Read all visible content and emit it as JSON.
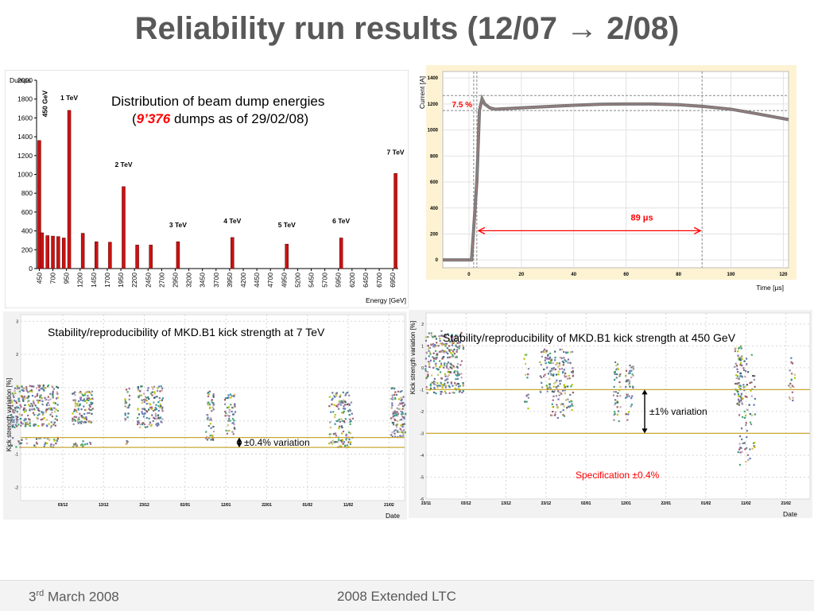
{
  "slide": {
    "title": "Reliability run results (12/07 → 2/08)",
    "footer_date_day": "3",
    "footer_date_suffix": "rd",
    "footer_date_rest": " March 2008",
    "footer_event": "2008 Extended LTC"
  },
  "colors": {
    "bar": "#cc1111",
    "accent_red": "#ff0000",
    "ref_line": "#c8a832",
    "scope_bg": "#fdf3d3",
    "trace": "#777777"
  },
  "chart_data": [
    {
      "id": "dump-histogram",
      "type": "bar",
      "title": "Distribution of beam dump energies",
      "subtitle_prefix": "(",
      "subtitle_count": "9’376",
      "subtitle_suffix": " dumps as of 29/02/08)",
      "xlabel": "Energy [GeV]",
      "ylabel": "Dumps",
      "ylim": [
        0,
        2000
      ],
      "yticks": [
        0,
        200,
        400,
        600,
        800,
        1000,
        1200,
        1400,
        1600,
        1800,
        2000
      ],
      "categories": [
        "450",
        "700",
        "950",
        "1200",
        "1450",
        "1700",
        "1950",
        "2200",
        "2450",
        "2700",
        "2950",
        "3200",
        "3450",
        "3700",
        "3950",
        "4200",
        "4450",
        "4700",
        "4950",
        "5200",
        "5450",
        "5700",
        "5950",
        "6200",
        "6450",
        "6700",
        "6950"
      ],
      "bars": [
        {
          "x": 450,
          "value": 1360
        },
        {
          "x": 500,
          "value": 380
        },
        {
          "x": 600,
          "value": 350
        },
        {
          "x": 700,
          "value": 345
        },
        {
          "x": 800,
          "value": 340
        },
        {
          "x": 900,
          "value": 325
        },
        {
          "x": 1000,
          "value": 1680
        },
        {
          "x": 1250,
          "value": 375
        },
        {
          "x": 1500,
          "value": 285
        },
        {
          "x": 1750,
          "value": 280
        },
        {
          "x": 2000,
          "value": 870
        },
        {
          "x": 2250,
          "value": 250
        },
        {
          "x": 2500,
          "value": 250
        },
        {
          "x": 3000,
          "value": 285
        },
        {
          "x": 4000,
          "value": 330
        },
        {
          "x": 5000,
          "value": 260
        },
        {
          "x": 6000,
          "value": 325
        },
        {
          "x": 7000,
          "value": 1010
        }
      ],
      "annotations": [
        {
          "text": "450 GeV",
          "x": 450,
          "y": 1750,
          "rotated": true
        },
        {
          "text": "1 TeV",
          "x": 1000,
          "y": 1790
        },
        {
          "text": "2 TeV",
          "x": 2000,
          "y": 1080
        },
        {
          "text": "3 TeV",
          "x": 3000,
          "y": 440
        },
        {
          "text": "4 TeV",
          "x": 4000,
          "y": 480
        },
        {
          "text": "5 TeV",
          "x": 5000,
          "y": 440
        },
        {
          "text": "6 TeV",
          "x": 6000,
          "y": 480
        },
        {
          "text": "7 TeV",
          "x": 7000,
          "y": 1210
        }
      ]
    },
    {
      "id": "kick-current-trace",
      "type": "line",
      "xlabel": "Time [μs]",
      "ylabel": "Current [A]",
      "xlim": [
        -10,
        122
      ],
      "ylim": [
        -60,
        1450
      ],
      "xticks": [
        0,
        20,
        40,
        60,
        80,
        100,
        120
      ],
      "yticks": [
        0,
        200,
        400,
        600,
        800,
        1000,
        1200,
        1400
      ],
      "x": [
        -10,
        1,
        3,
        4,
        5,
        6,
        8,
        10,
        15,
        20,
        30,
        40,
        50,
        60,
        70,
        80,
        90,
        100,
        110,
        122
      ],
      "y": [
        0,
        0,
        600,
        1150,
        1240,
        1200,
        1170,
        1160,
        1165,
        1170,
        1180,
        1190,
        1198,
        1200,
        1200,
        1195,
        1180,
        1160,
        1125,
        1080
      ],
      "flat_top_label": "7.5 %",
      "flat_top_band": [
        1150,
        1265
      ],
      "duration_label": "89 μs",
      "duration_range": [
        3,
        89
      ]
    },
    {
      "id": "stability-7tev",
      "type": "scatter",
      "title": "Stability/reproducibility of MKD.B1 kick strength at 7 TeV",
      "xlabel": "Date",
      "ylabel": "Kick strength variation [%]",
      "ylim": [
        -2.4,
        3.2
      ],
      "yticks": [
        -2,
        -1,
        0,
        1,
        2,
        3
      ],
      "xticks": [
        "03/12",
        "13/12",
        "23/12",
        "02/01",
        "12/01",
        "22/01",
        "01/02",
        "11/02",
        "21/02"
      ],
      "reference_lines": [
        -0.5,
        -0.8
      ],
      "band_label": "±0.4% variation"
    },
    {
      "id": "stability-450gev",
      "type": "scatter",
      "title": "Stability/reproducibility of MKD.B1 kick strength at 450 GeV",
      "xlabel": "Date",
      "ylabel": "Kick strength variation [%]",
      "ylim": [
        -6.0,
        2.5
      ],
      "yticks": [
        -6,
        -5,
        -4,
        -3,
        -2,
        -1,
        0,
        1,
        2
      ],
      "xticks": [
        "23/11",
        "03/12",
        "13/12",
        "23/12",
        "02/01",
        "12/01",
        "22/01",
        "01/02",
        "11/02",
        "21/02"
      ],
      "reference_lines": [
        -1.0,
        -3.0
      ],
      "band_label": "±1% variation",
      "spec_label": "Specification ±0.4%"
    }
  ]
}
